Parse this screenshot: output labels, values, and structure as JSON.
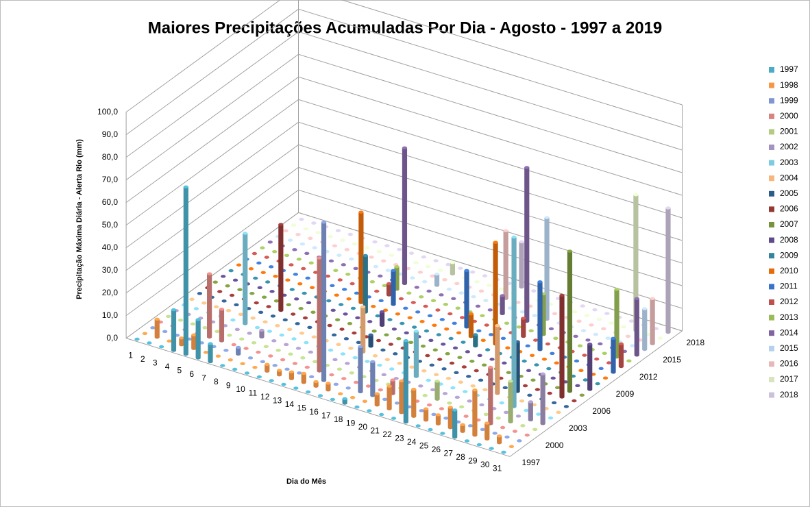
{
  "chart_data": {
    "type": "bar3d",
    "title": "Maiores Precipitações Acumuladas Por Dia - Agosto - 1997 a 2019",
    "y_label": "Precipitação Máxima Diária - Alerta Rio (mm)",
    "x_label": "Dia do Mês",
    "categories": [
      "1",
      "2",
      "3",
      "4",
      "5",
      "6",
      "7",
      "8",
      "9",
      "10",
      "11",
      "12",
      "13",
      "14",
      "15",
      "16",
      "17",
      "18",
      "19",
      "20",
      "21",
      "22",
      "23",
      "24",
      "25",
      "26",
      "27",
      "28",
      "29",
      "30",
      "31"
    ],
    "ylim": [
      0,
      100
    ],
    "yticks": [
      {
        "value": 0,
        "label": "0,0"
      },
      {
        "value": 10,
        "label": "10,0"
      },
      {
        "value": 20,
        "label": "20,0"
      },
      {
        "value": 30,
        "label": "30,0"
      },
      {
        "value": 40,
        "label": "40,0"
      },
      {
        "value": 50,
        "label": "50,0"
      },
      {
        "value": 60,
        "label": "60,0"
      },
      {
        "value": 70,
        "label": "70,0"
      },
      {
        "value": 80,
        "label": "80,0"
      },
      {
        "value": 90,
        "label": "90,0"
      },
      {
        "value": 100,
        "label": "100,0"
      }
    ],
    "grid": true,
    "legend": "right",
    "series": [
      {
        "name": "1997",
        "color": "#4bacc6",
        "values": [
          0,
          0,
          0,
          18,
          74,
          17,
          8,
          0,
          0,
          0,
          0,
          0,
          0,
          0,
          0,
          0,
          0,
          2,
          0,
          0,
          0,
          0,
          36,
          0,
          0,
          0,
          12,
          0,
          0,
          0,
          0
        ]
      },
      {
        "name": "1998",
        "color": "#f79646",
        "values": [
          0,
          8,
          0,
          3,
          6,
          0,
          0,
          0,
          0,
          0,
          3,
          2,
          3,
          4,
          2,
          3,
          0,
          0,
          0,
          5,
          10,
          14,
          12,
          5,
          4,
          9,
          3,
          20,
          7,
          3,
          0
        ]
      },
      {
        "name": "1999",
        "color": "#7f96d0",
        "values": [
          0,
          0,
          0,
          0,
          0,
          0,
          0,
          3,
          0,
          0,
          0,
          0,
          0,
          0,
          70,
          0,
          0,
          20,
          15,
          0,
          0,
          0,
          0,
          0,
          0,
          0,
          0,
          0,
          0,
          0,
          0
        ]
      },
      {
        "name": "2000",
        "color": "#d9827f",
        "values": [
          0,
          0,
          0,
          0,
          28,
          14,
          0,
          0,
          0,
          0,
          0,
          0,
          0,
          50,
          0,
          0,
          0,
          0,
          0,
          6,
          8,
          0,
          0,
          0,
          0,
          0,
          0,
          25,
          0,
          0,
          0
        ]
      },
      {
        "name": "2001",
        "color": "#b3cc82",
        "values": [
          0,
          0,
          0,
          0,
          0,
          0,
          0,
          0,
          0,
          0,
          0,
          0,
          0,
          0,
          0,
          0,
          0,
          0,
          0,
          0,
          0,
          0,
          8,
          0,
          0,
          0,
          0,
          0,
          18,
          0,
          0
        ]
      },
      {
        "name": "2002",
        "color": "#a493bf",
        "values": [
          0,
          0,
          0,
          0,
          0,
          0,
          0,
          3,
          0,
          0,
          0,
          0,
          0,
          0,
          0,
          0,
          0,
          0,
          0,
          0,
          0,
          0,
          0,
          0,
          0,
          0,
          0,
          0,
          0,
          8,
          22
        ]
      },
      {
        "name": "2003",
        "color": "#7ccbe0",
        "values": [
          0,
          0,
          0,
          0,
          0,
          40,
          0,
          0,
          0,
          0,
          0,
          0,
          0,
          0,
          0,
          0,
          0,
          0,
          0,
          20,
          0,
          0,
          0,
          0,
          0,
          0,
          0,
          75,
          0,
          0,
          0
        ]
      },
      {
        "name": "2004",
        "color": "#fab57d",
        "values": [
          0,
          0,
          0,
          0,
          0,
          0,
          0,
          0,
          0,
          0,
          0,
          0,
          0,
          0,
          20,
          0,
          0,
          0,
          0,
          0,
          0,
          0,
          0,
          0,
          0,
          30,
          0,
          0,
          0,
          0,
          0
        ]
      },
      {
        "name": "2005",
        "color": "#2e5c8a",
        "values": [
          0,
          0,
          0,
          0,
          0,
          0,
          0,
          0,
          0,
          0,
          0,
          0,
          0,
          0,
          5,
          0,
          0,
          0,
          0,
          0,
          0,
          0,
          0,
          0,
          0,
          0,
          22,
          0,
          0,
          0,
          0
        ]
      },
      {
        "name": "2006",
        "color": "#953735",
        "values": [
          0,
          0,
          0,
          0,
          0,
          0,
          38,
          0,
          0,
          0,
          0,
          0,
          0,
          0,
          0,
          0,
          0,
          0,
          0,
          0,
          0,
          0,
          0,
          0,
          0,
          0,
          0,
          0,
          0,
          45,
          0
        ]
      },
      {
        "name": "2007",
        "color": "#77933c",
        "values": [
          0,
          0,
          0,
          0,
          0,
          0,
          0,
          0,
          0,
          0,
          0,
          0,
          0,
          0,
          0,
          0,
          0,
          0,
          0,
          0,
          0,
          0,
          0,
          0,
          0,
          0,
          0,
          0,
          0,
          62,
          0
        ]
      },
      {
        "name": "2008",
        "color": "#5f4b8b",
        "values": [
          0,
          0,
          0,
          0,
          0,
          0,
          0,
          0,
          0,
          0,
          0,
          0,
          0,
          6,
          0,
          0,
          0,
          0,
          0,
          0,
          0,
          0,
          0,
          0,
          0,
          0,
          0,
          0,
          0,
          0,
          20
        ]
      },
      {
        "name": "2009",
        "color": "#31859c",
        "values": [
          0,
          0,
          0,
          0,
          0,
          0,
          0,
          0,
          0,
          0,
          0,
          25,
          0,
          0,
          0,
          0,
          0,
          0,
          0,
          0,
          5,
          0,
          0,
          0,
          0,
          0,
          0,
          0,
          0,
          0,
          0
        ]
      },
      {
        "name": "2010",
        "color": "#e46c0a",
        "values": [
          0,
          0,
          0,
          0,
          0,
          0,
          0,
          0,
          0,
          0,
          40,
          0,
          0,
          0,
          0,
          0,
          0,
          0,
          0,
          10,
          0,
          45,
          0,
          0,
          0,
          0,
          0,
          0,
          0,
          0,
          0
        ]
      },
      {
        "name": "2011",
        "color": "#3a74c8",
        "values": [
          0,
          0,
          0,
          0,
          0,
          0,
          0,
          0,
          0,
          0,
          0,
          0,
          15,
          0,
          0,
          0,
          0,
          0,
          25,
          0,
          0,
          0,
          0,
          0,
          30,
          0,
          0,
          0,
          0,
          0,
          15
        ]
      },
      {
        "name": "2012",
        "color": "#c0504d",
        "values": [
          0,
          0,
          0,
          0,
          0,
          0,
          0,
          0,
          0,
          0,
          0,
          5,
          0,
          0,
          0,
          0,
          0,
          0,
          0,
          0,
          0,
          0,
          8,
          0,
          0,
          0,
          0,
          0,
          0,
          0,
          10
        ]
      },
      {
        "name": "2013",
        "color": "#9bbb59",
        "values": [
          0,
          0,
          0,
          0,
          0,
          0,
          0,
          0,
          0,
          0,
          0,
          10,
          0,
          0,
          0,
          0,
          0,
          0,
          0,
          0,
          0,
          0,
          0,
          18,
          0,
          0,
          0,
          0,
          0,
          30,
          0
        ]
      },
      {
        "name": "2014",
        "color": "#8064a2",
        "values": [
          0,
          0,
          0,
          0,
          0,
          0,
          0,
          0,
          0,
          0,
          0,
          60,
          0,
          0,
          0,
          0,
          0,
          0,
          0,
          8,
          0,
          68,
          0,
          0,
          0,
          0,
          0,
          0,
          0,
          0,
          25
        ]
      },
      {
        "name": "2015",
        "color": "#b7d1ec",
        "values": [
          0,
          0,
          0,
          0,
          0,
          0,
          0,
          0,
          0,
          0,
          0,
          0,
          0,
          5,
          0,
          0,
          0,
          0,
          0,
          0,
          0,
          0,
          45,
          0,
          0,
          0,
          0,
          0,
          0,
          0,
          18
        ]
      },
      {
        "name": "2016",
        "color": "#e6b9b8",
        "values": [
          0,
          0,
          0,
          0,
          0,
          0,
          0,
          0,
          0,
          0,
          0,
          0,
          0,
          0,
          0,
          0,
          0,
          0,
          30,
          0,
          0,
          0,
          0,
          0,
          0,
          0,
          0,
          0,
          0,
          0,
          20
        ]
      },
      {
        "name": "2017",
        "color": "#d7e4bd",
        "values": [
          0,
          0,
          0,
          0,
          0,
          0,
          0,
          0,
          0,
          0,
          0,
          0,
          0,
          5,
          0,
          0,
          0,
          0,
          0,
          0,
          0,
          0,
          0,
          0,
          0,
          0,
          0,
          0,
          60,
          0,
          0
        ]
      },
      {
        "name": "2018",
        "color": "#ccc0da",
        "values": [
          0,
          0,
          0,
          0,
          0,
          0,
          0,
          0,
          0,
          0,
          0,
          0,
          0,
          0,
          0,
          0,
          0,
          0,
          20,
          0,
          0,
          0,
          0,
          0,
          0,
          0,
          0,
          0,
          0,
          0,
          55
        ]
      }
    ]
  }
}
